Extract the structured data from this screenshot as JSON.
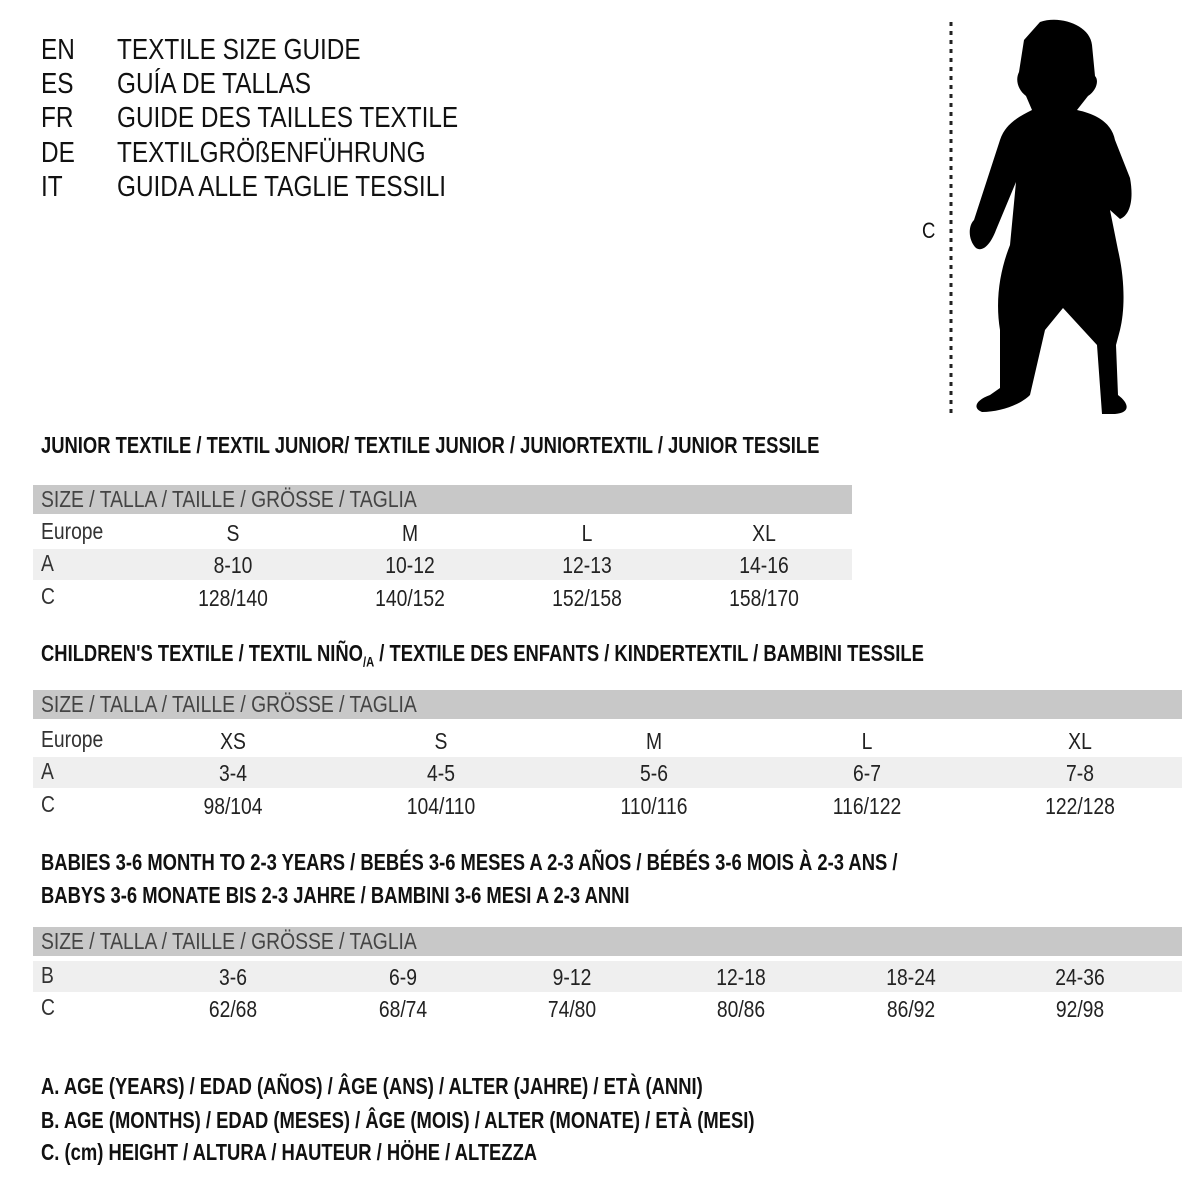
{
  "guide": [
    {
      "code": "EN",
      "title": "TEXTILE SIZE GUIDE"
    },
    {
      "code": "ES",
      "title": "GUÍA DE TALLAS"
    },
    {
      "code": "FR",
      "title": "GUIDE DES TAILLES TEXTILE"
    },
    {
      "code": "DE",
      "title": "TEXTILGRÖßENFÜHRUNG"
    },
    {
      "code": "IT",
      "title": "GUIDA ALLE TAGLIE TESSILI"
    }
  ],
  "figure": {
    "measure_label": "C"
  },
  "junior": {
    "heading": "JUNIOR TEXTILE / TEXTIL JUNIOR/ TEXTILE JUNIOR / JUNIORTEXTIL / JUNIOR TESSILE",
    "header": "SIZE / TALLA / TAILLE / GRÖSSE / TAGLIA",
    "rows": [
      {
        "label": "Europe",
        "values": [
          "S",
          "M",
          "L",
          "XL"
        ]
      },
      {
        "label": "A",
        "values": [
          "8-10",
          "10-12",
          "12-13",
          "14-16"
        ]
      },
      {
        "label": "C",
        "values": [
          "128/140",
          "140/152",
          "152/158",
          "158/170"
        ]
      }
    ]
  },
  "children": {
    "heading_a": "CHILDREN'S TEXTILE / TEXTIL NIÑO",
    "heading_sub": "/A",
    "heading_b": " / TEXTILE DES ENFANTS / KINDERTEXTIL / BAMBINI TESSILE",
    "header": "SIZE / TALLA / TAILLE / GRÖSSE / TAGLIA",
    "rows": [
      {
        "label": "Europe",
        "values": [
          "XS",
          "S",
          "M",
          "L",
          "XL"
        ]
      },
      {
        "label": "A",
        "values": [
          "3-4",
          "4-5",
          "5-6",
          "6-7",
          "7-8"
        ]
      },
      {
        "label": "C",
        "values": [
          "98/104",
          "104/110",
          "110/116",
          "116/122",
          "122/128"
        ]
      }
    ]
  },
  "babies": {
    "heading_1": "BABIES 3-6 MONTH TO 2-3 YEARS / BEBÉS 3-6 MESES A 2-3 AÑOS / BÉBÉS 3-6 MOIS À 2-3 ANS /",
    "heading_2": "BABYS 3-6 MONATE BIS 2-3 JAHRE / BAMBINI 3-6 MESI A 2-3 ANNI",
    "header": "SIZE / TALLA / TAILLE / GRÖSSE / TAGLIA",
    "rows": [
      {
        "label": "B",
        "values": [
          "3-6",
          "6-9",
          "9-12",
          "12-18",
          "18-24",
          "24-36"
        ]
      },
      {
        "label": "C",
        "values": [
          "62/68",
          "68/74",
          "74/80",
          "80/86",
          "86/92",
          "92/98"
        ]
      }
    ]
  },
  "legend": [
    "A. AGE (YEARS) / EDAD (AÑOS) / ÂGE (ANS) / ALTER (JAHRE) / ETÀ (ANNI)",
    "B. AGE (MONTHS) / EDAD (MESES) / ÂGE (MOIS) / ALTER (MONATE) / ETÀ (MESI)",
    "C. (cm) HEIGHT / ALTURA / HAUTEUR / HÖHE / ALTEZZA"
  ]
}
